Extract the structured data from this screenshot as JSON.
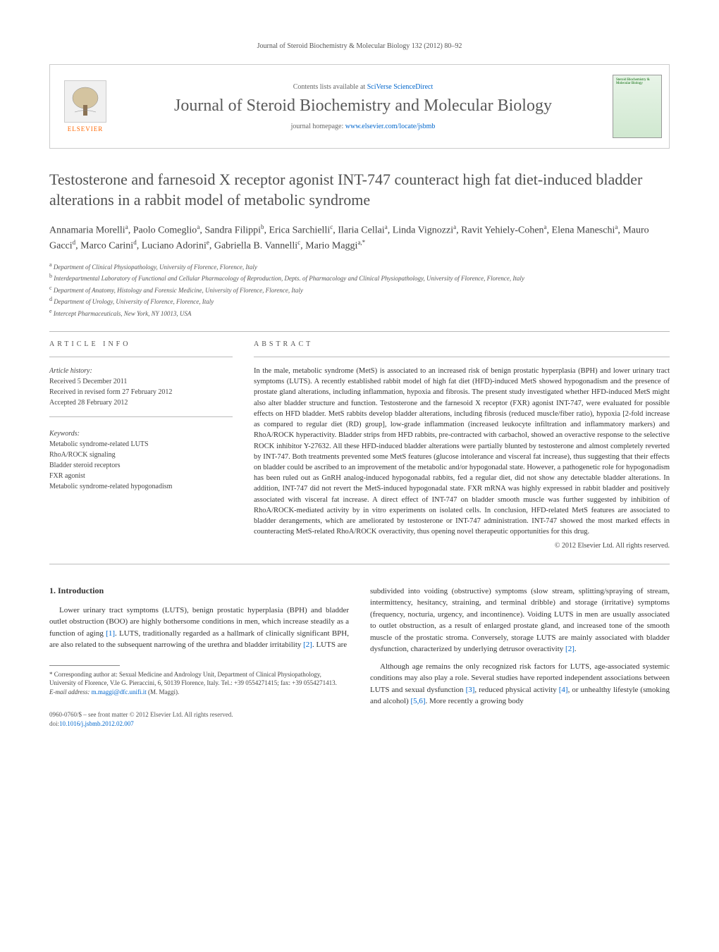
{
  "journal_ref": "Journal of Steroid Biochemistry & Molecular Biology 132 (2012) 80–92",
  "header": {
    "contents_prefix": "Contents lists available at ",
    "contents_link": "SciVerse ScienceDirect",
    "journal_name": "Journal of Steroid Biochemistry and Molecular Biology",
    "homepage_prefix": "journal homepage: ",
    "homepage_link": "www.elsevier.com/locate/jsbmb",
    "publisher": "ELSEVIER",
    "cover_text": "Steroid Biochemistry & Molecular Biology"
  },
  "title": "Testosterone and farnesoid X receptor agonist INT-747 counteract high fat diet-induced bladder alterations in a rabbit model of metabolic syndrome",
  "authors_html": "Annamaria Morelli<sup>a</sup>, Paolo Comeglio<sup>a</sup>, Sandra Filippi<sup>b</sup>, Erica Sarchielli<sup>c</sup>, Ilaria Cellai<sup>a</sup>, Linda Vignozzi<sup>a</sup>, Ravit Yehiely-Cohen<sup>a</sup>, Elena Maneschi<sup>a</sup>, Mauro Gacci<sup>d</sup>, Marco Carini<sup>d</sup>, Luciano Adorini<sup>e</sup>, Gabriella B. Vannelli<sup>c</sup>, Mario Maggi<sup>a,*</sup>",
  "affiliations": [
    {
      "sup": "a",
      "text": "Department of Clinical Physiopathology, University of Florence, Florence, Italy"
    },
    {
      "sup": "b",
      "text": "Interdepartmental Laboratory of Functional and Cellular Pharmacology of Reproduction, Depts. of Pharmacology and Clinical Physiopathology, University of Florence, Florence, Italy"
    },
    {
      "sup": "c",
      "text": "Department of Anatomy, Histology and Forensic Medicine, University of Florence, Florence, Italy"
    },
    {
      "sup": "d",
      "text": "Department of Urology, University of Florence, Florence, Italy"
    },
    {
      "sup": "e",
      "text": "Intercept Pharmaceuticals, New York, NY 10013, USA"
    }
  ],
  "article_info": {
    "label": "ARTICLE INFO",
    "history_label": "Article history:",
    "received": "Received 5 December 2011",
    "revised": "Received in revised form 27 February 2012",
    "accepted": "Accepted 28 February 2012",
    "keywords_label": "Keywords:",
    "keywords": [
      "Metabolic syndrome-related LUTS",
      "RhoA/ROCK signaling",
      "Bladder steroid receptors",
      "FXR agonist",
      "Metabolic syndrome-related hypogonadism"
    ]
  },
  "abstract": {
    "label": "ABSTRACT",
    "text": "In the male, metabolic syndrome (MetS) is associated to an increased risk of benign prostatic hyperplasia (BPH) and lower urinary tract symptoms (LUTS). A recently established rabbit model of high fat diet (HFD)-induced MetS showed hypogonadism and the presence of prostate gland alterations, including inflammation, hypoxia and fibrosis. The present study investigated whether HFD-induced MetS might also alter bladder structure and function. Testosterone and the farnesoid X receptor (FXR) agonist INT-747, were evaluated for possible effects on HFD bladder. MetS rabbits develop bladder alterations, including fibrosis (reduced muscle/fiber ratio), hypoxia [2-fold increase as compared to regular diet (RD) group], low-grade inflammation (increased leukocyte infiltration and inflammatory markers) and RhoA/ROCK hyperactivity. Bladder strips from HFD rabbits, pre-contracted with carbachol, showed an overactive response to the selective ROCK inhibitor Y-27632. All these HFD-induced bladder alterations were partially blunted by testosterone and almost completely reverted by INT-747. Both treatments prevented some MetS features (glucose intolerance and visceral fat increase), thus suggesting that their effects on bladder could be ascribed to an improvement of the metabolic and/or hypogonadal state. However, a pathogenetic role for hypogonadism has been ruled out as GnRH analog-induced hypogonadal rabbits, fed a regular diet, did not show any detectable bladder alterations. In addition, INT-747 did not revert the MetS-induced hypogonadal state. FXR mRNA was highly expressed in rabbit bladder and positively associated with visceral fat increase. A direct effect of INT-747 on bladder smooth muscle was further suggested by inhibition of RhoA/ROCK-mediated activity by in vitro experiments on isolated cells. In conclusion, HFD-related MetS features are associated to bladder derangements, which are ameliorated by testosterone or INT-747 administration. INT-747 showed the most marked effects in counteracting MetS-related RhoA/ROCK overactivity, thus opening novel therapeutic opportunities for this drug.",
    "copyright": "© 2012 Elsevier Ltd. All rights reserved."
  },
  "intro": {
    "heading": "1. Introduction",
    "col1_html": "Lower urinary tract symptoms (LUTS), benign prostatic hyperplasia (BPH) and bladder outlet obstruction (BOO) are highly bothersome conditions in men, which increase steadily as a function of aging <span class='ref-link'>[1]</span>. LUTS, traditionally regarded as a hallmark of clinically significant BPH, are also related to the subsequent narrowing of the urethra and bladder irritability <span class='ref-link'>[2]</span>. LUTS are",
    "col2_p1_html": "subdivided into voiding (obstructive) symptoms (slow stream, splitting/spraying of stream, intermittency, hesitancy, straining, and terminal dribble) and storage (irritative) symptoms (frequency, nocturia, urgency, and incontinence). Voiding LUTS in men are usually associated to outlet obstruction, as a result of enlarged prostate gland, and increased tone of the smooth muscle of the prostatic stroma. Conversely, storage LUTS are mainly associated with bladder dysfunction, characterized by underlying detrusor overactivity <span class='ref-link'>[2]</span>.",
    "col2_p2_html": "Although age remains the only recognized risk factors for LUTS, age-associated systemic conditions may also play a role. Several studies have reported independent associations between LUTS and sexual dysfunction <span class='ref-link'>[3]</span>, reduced physical activity <span class='ref-link'>[4]</span>, or unhealthy lifestyle (smoking and alcohol) <span class='ref-link'>[5,6]</span>. More recently a growing body"
  },
  "corresponding": {
    "marker": "*",
    "label": "Corresponding author at: ",
    "text": "Sexual Medicine and Andrology Unit, Department of Clinical Physiopathology, University of Florence, V.le G. Pieraccini, 6, 50139 Florence, Italy. Tel.: +39 0554271415; fax: +39 0554271413.",
    "email_label": "E-mail address: ",
    "email": "m.maggi@dfc.unifi.it",
    "email_name": " (M. Maggi)."
  },
  "footer": {
    "issn": "0960-0760/$ – see front matter © 2012 Elsevier Ltd. All rights reserved.",
    "doi_prefix": "doi:",
    "doi": "10.1016/j.jsbmb.2012.02.007"
  },
  "colors": {
    "link": "#0066cc",
    "text": "#333333",
    "heading": "#505050",
    "meta": "#555555",
    "border": "#cccccc",
    "elsevier_orange": "#ff6600"
  },
  "typography": {
    "body_size_pt": 11,
    "title_size_pt": 22,
    "journal_size_pt": 24,
    "abstract_size_pt": 10.5,
    "footnote_size_pt": 9,
    "family": "Georgia, Times New Roman, serif"
  }
}
